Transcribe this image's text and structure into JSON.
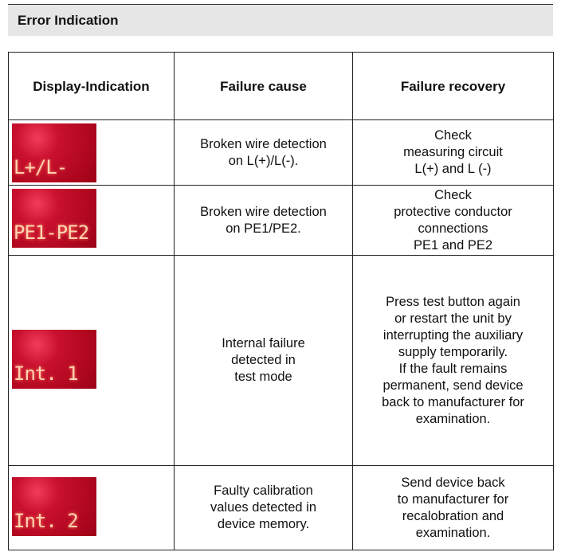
{
  "header": {
    "title": "Error Indication"
  },
  "table": {
    "columns": [
      "Display-Indication",
      "Failure cause",
      "Failure recovery"
    ],
    "rows": [
      {
        "display": "L+/L-",
        "cause": [
          "Broken wire detection",
          "on L(+)/L(-)."
        ],
        "recovery": [
          "Check",
          "measuring circuit",
          "L(+) and L (-)"
        ]
      },
      {
        "display": "PE1-PE2",
        "cause": [
          "Broken wire detection",
          "on PE1/PE2."
        ],
        "recovery": [
          "Check",
          "protective conductor",
          "connections",
          "PE1 and PE2"
        ]
      },
      {
        "display": "Int. 1",
        "cause": [
          "Internal failure",
          "detected in",
          "test mode"
        ],
        "recovery": [
          "Press test button again",
          "or restart the unit by",
          "interrupting the auxiliary",
          "supply temporarily.",
          "If the fault remains",
          "permanent, send device",
          "back to manufacturer for",
          "examination."
        ]
      },
      {
        "display": "Int. 2",
        "cause": [
          "Faulty calibration",
          "values detected in",
          "device memory."
        ],
        "recovery": [
          "Send device back",
          "to manufacturer for",
          "recalobration and",
          "examination."
        ]
      }
    ]
  }
}
